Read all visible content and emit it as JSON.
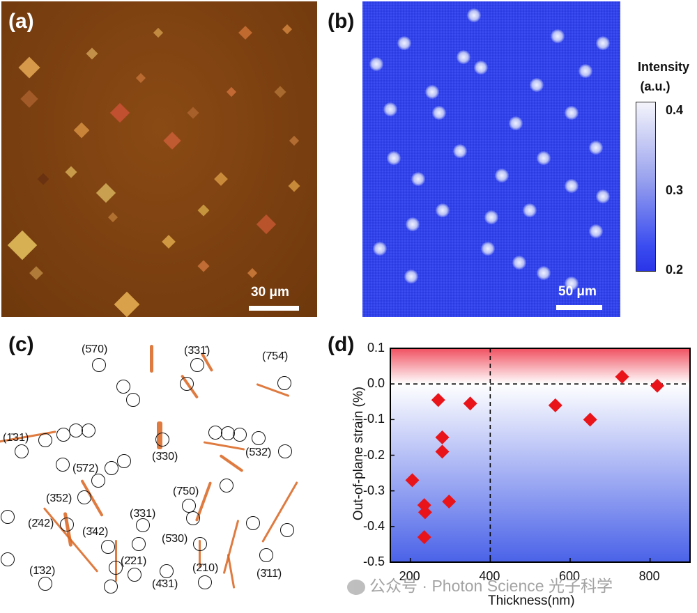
{
  "panels": {
    "a": {
      "label": "(a)",
      "scale_text": "30 μm"
    },
    "b": {
      "label": "(b)",
      "scale_text": "50 μm",
      "colorbar": {
        "title_line1": "Intensity",
        "title_line2": "(a.u.)",
        "ticks": [
          "0.4",
          "0.3",
          "0.2"
        ]
      }
    },
    "c": {
      "label": "(c)",
      "miller_indices": [
        "(5̄70)",
        "(3̄31̄)",
        "(7̄54̄)",
        "(1̄31)",
        "(3̄30)",
        "(5̄32̄)",
        "(5̄72)",
        "(3̄52)",
        "(7̄50)",
        "(2̄42)",
        "(3̄31)",
        "(3̄42)",
        "(5̄30)",
        "(2̄21)",
        "(1̄32)",
        "(2̄10)",
        "(4̄31)",
        "(3̄11̄)"
      ]
    },
    "d": {
      "label": "(d)"
    }
  },
  "chart_data": {
    "type": "scatter",
    "xlabel": "Thickness(nm)",
    "ylabel": "Out-of-plane strain (%)",
    "xlim": [
      150,
      900
    ],
    "ylim": [
      -0.5,
      0.1
    ],
    "xticks": [
      "200",
      "400",
      "600",
      "800"
    ],
    "yticks": [
      "0.1",
      "0.0",
      "-0.1",
      "-0.2",
      "-0.3",
      "-0.4",
      "-0.5"
    ],
    "marker_color": "#e8141a",
    "reference_lines": {
      "x": 400,
      "y": 0.0
    },
    "points": [
      {
        "x": 205,
        "y": -0.27
      },
      {
        "x": 235,
        "y": -0.34
      },
      {
        "x": 237,
        "y": -0.36
      },
      {
        "x": 235,
        "y": -0.43
      },
      {
        "x": 270,
        "y": -0.045
      },
      {
        "x": 280,
        "y": -0.15
      },
      {
        "x": 280,
        "y": -0.19
      },
      {
        "x": 297,
        "y": -0.33
      },
      {
        "x": 350,
        "y": -0.055
      },
      {
        "x": 563,
        "y": -0.06
      },
      {
        "x": 650,
        "y": -0.1
      },
      {
        "x": 730,
        "y": 0.02
      },
      {
        "x": 818,
        "y": -0.005
      }
    ]
  },
  "watermark": {
    "text": "公众号 · Photon Science 光子科学"
  }
}
